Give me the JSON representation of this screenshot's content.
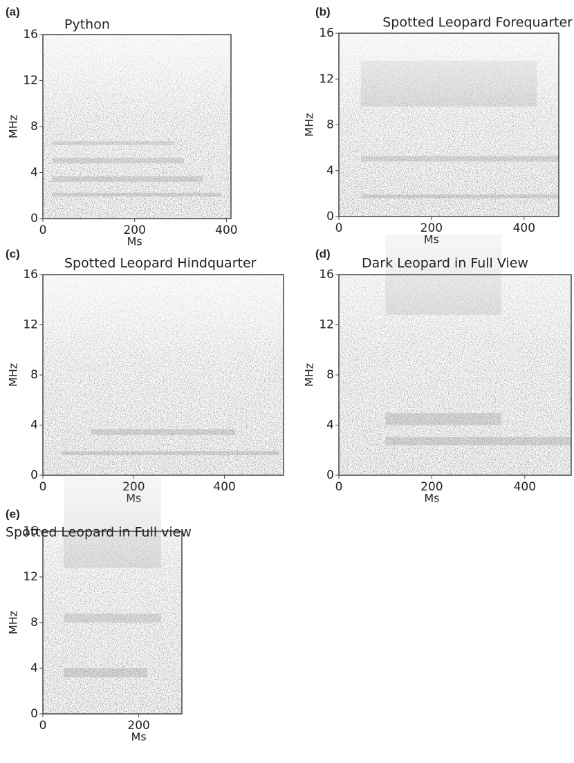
{
  "chart_data": [
    {
      "type": "spectrogram",
      "panel_label": "(a)",
      "title": "Python",
      "x_label": "Ms",
      "y_label": "MHz",
      "xlim": [
        0,
        410
      ],
      "ylim": [
        0,
        16
      ],
      "xticks": [
        0,
        200,
        400
      ],
      "yticks": [
        0,
        4,
        8,
        12,
        16
      ]
    },
    {
      "type": "spectrogram",
      "panel_label": "(b)",
      "title": "Spotted Leopard Forequarter",
      "x_label": "Ms",
      "y_label": "MHz",
      "xlim": [
        0,
        475
      ],
      "ylim": [
        0,
        16
      ],
      "xticks": [
        0,
        200,
        400
      ],
      "yticks": [
        0,
        4,
        8,
        12,
        16
      ]
    },
    {
      "type": "spectrogram",
      "panel_label": "(c)",
      "title": "Spotted Leopard Hindquarter",
      "x_label": "Ms",
      "y_label": "MHz",
      "xlim": [
        0,
        530
      ],
      "ylim": [
        0,
        16
      ],
      "xticks": [
        0,
        200,
        400
      ],
      "yticks": [
        0,
        4,
        8,
        12,
        16
      ]
    },
    {
      "type": "spectrogram",
      "panel_label": "(d)",
      "title": "Dark Leopard in Full View",
      "x_label": "Ms",
      "y_label": "MHz",
      "xlim": [
        0,
        500
      ],
      "ylim": [
        0,
        16
      ],
      "xticks": [
        0,
        200,
        400
      ],
      "yticks": [
        0,
        4,
        8,
        12,
        16
      ]
    },
    {
      "type": "spectrogram",
      "panel_label": "(e)",
      "title": "Spotted Leopard in Full view",
      "x_label": "Ms",
      "y_label": "MHz",
      "xlim": [
        0,
        290
      ],
      "ylim": [
        0,
        16
      ],
      "xticks": [
        0,
        200
      ],
      "yticks": [
        0,
        4,
        8,
        12,
        16
      ]
    }
  ]
}
